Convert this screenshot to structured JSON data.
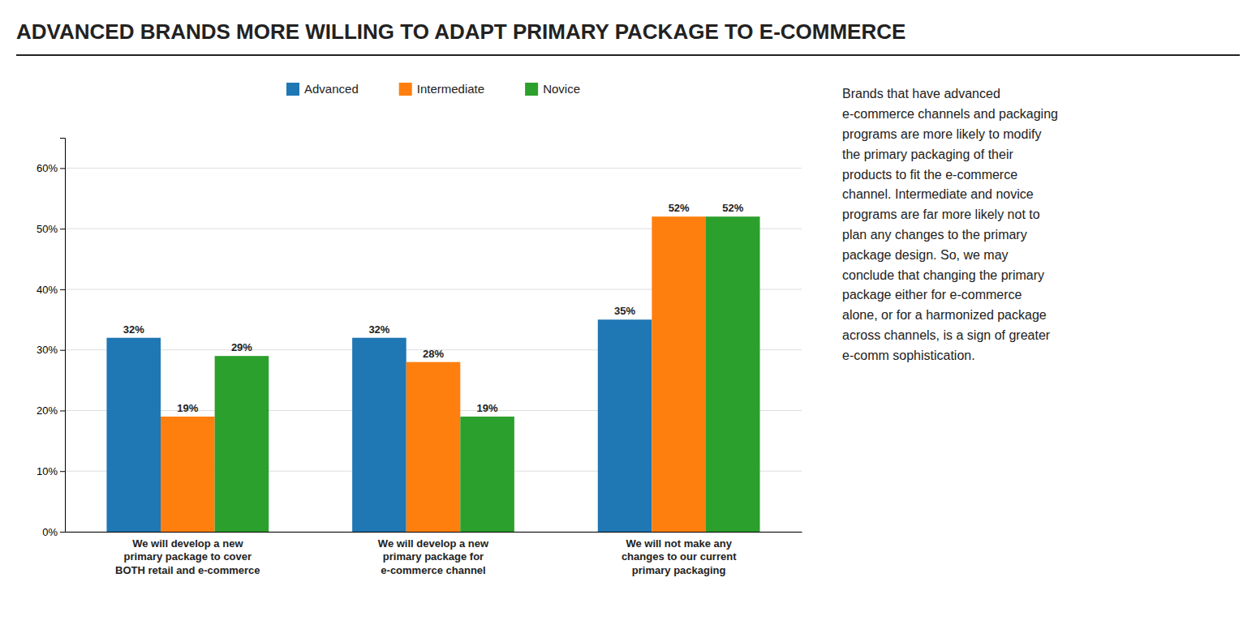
{
  "chart_data": {
    "type": "bar",
    "title": "ADVANCED BRANDS MORE WILLING TO ADAPT PRIMARY PACKAGE TO E-COMMERCE",
    "categories": [
      "We will develop a new\nprimary package to cover\nBOTH retail and e-commerce",
      "We will develop a new\nprimary package for\ne-commerce channel",
      "We will not make any\nchanges to our current\nprimary packaging"
    ],
    "series": [
      {
        "name": "Advanced",
        "values": [
          32,
          32,
          35
        ],
        "value_labels": [
          "32%",
          "32%",
          "35%"
        ]
      },
      {
        "name": "Intermediate",
        "values": [
          19,
          28,
          52
        ],
        "value_labels": [
          "19%",
          "28%",
          "52%"
        ]
      },
      {
        "name": "Novice",
        "values": [
          29,
          19,
          52
        ],
        "value_labels": [
          "29%",
          "19%",
          "52%"
        ]
      }
    ],
    "ylim": [
      0,
      65
    ],
    "yticks": [
      {
        "value": 0,
        "label": "0%"
      },
      {
        "value": 10,
        "label": "10%"
      },
      {
        "value": 20,
        "label": "20%"
      },
      {
        "value": 30,
        "label": "30%"
      },
      {
        "value": 40,
        "label": "40%"
      },
      {
        "value": 50,
        "label": "50%"
      },
      {
        "value": 60,
        "label": "60%"
      }
    ],
    "grid": true,
    "legend": "top",
    "data_labels": true,
    "annotation": "Brands that have advanced\ne-commerce channels and packaging\nprograms are more likely to modify\nthe primary packaging of their\nproducts to fit the e-commerce\nchannel. Intermediate and novice\nprograms are far more likely not to\nplan any changes to the primary\npackage design. So, we may\nconclude that changing the primary\npackage either for e-commerce\nalone, or for a harmonized package\nacross channels, is a sign of greater\ne-comm sophistication."
  }
}
